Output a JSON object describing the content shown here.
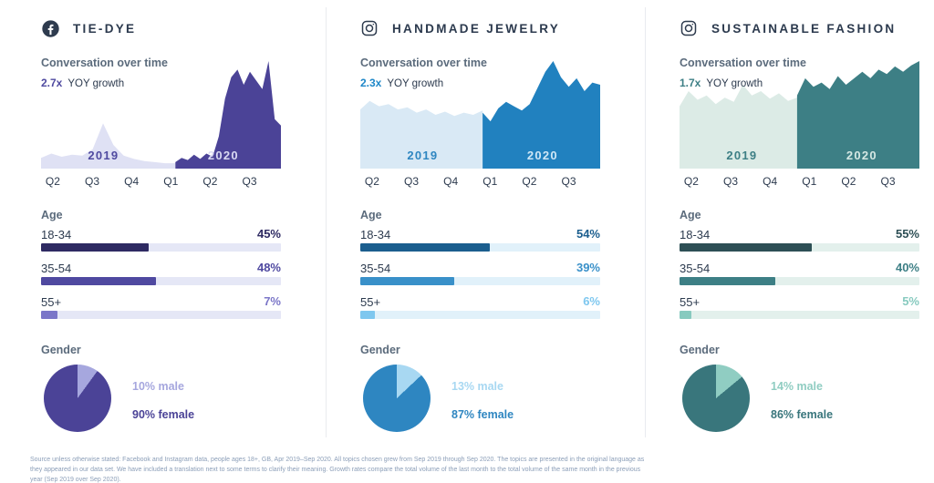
{
  "footer": {
    "text": "Source unless otherwise stated: Facebook and Instagram data, people ages 18+, GB, Apr 2019–Sep 2020. All topics chosen grew from Sep 2019 through Sep 2020. The topics are presented in the original language as they appeared in our data set. We have included a translation next to some terms to clarify their meaning. Growth rates compare the total volume of the last month to the total volume of the same month in the previous year (Sep 2019 over Sep 2020)."
  },
  "columns": [
    {
      "title": "TIE-DYE",
      "platform": "facebook",
      "icon": "facebook-icon",
      "conversation_label": "Conversation over time",
      "growth_value": "2.7x",
      "growth_label": "YOY growth",
      "age_label": "Age",
      "gender_label": "Gender",
      "age_rows": [
        {
          "label": "18-34",
          "pct": "45%"
        },
        {
          "label": "35-54",
          "pct": "48%"
        },
        {
          "label": "55+",
          "pct": "7%"
        }
      ],
      "male_label": "10% male",
      "female_label": "90% female",
      "colors": {
        "accent": "#4f4aa0",
        "area_2019": "#dfe1f4",
        "area_2020": "#4b4397",
        "year_2019_text": "#4f4aa0",
        "year_2020_text": "#d9d9f2",
        "track": "#e5e7f6",
        "male": "#a6a7de",
        "female": "#4b4397",
        "bar_colors": [
          "#2e2a62",
          "#4f49a0",
          "#7b76c8"
        ]
      }
    },
    {
      "title": "HANDMADE JEWELRY",
      "platform": "instagram",
      "icon": "instagram-icon",
      "conversation_label": "Conversation over time",
      "growth_value": "2.3x",
      "growth_label": "YOY growth",
      "age_label": "Age",
      "gender_label": "Gender",
      "age_rows": [
        {
          "label": "18-34",
          "pct": "54%"
        },
        {
          "label": "35-54",
          "pct": "39%"
        },
        {
          "label": "55+",
          "pct": "6%"
        }
      ],
      "male_label": "13% male",
      "female_label": "87% female",
      "colors": {
        "accent": "#1e87c8",
        "area_2019": "#d9e9f5",
        "area_2020": "#2181bf",
        "year_2019_text": "#2e86c1",
        "year_2020_text": "#cfe7f6",
        "track": "#e1f1fa",
        "male": "#a8d8f2",
        "female": "#2e86c1",
        "bar_colors": [
          "#1b5e8e",
          "#3990c9",
          "#7ec7ef"
        ]
      }
    },
    {
      "title": "SUSTAINABLE FASHION",
      "platform": "instagram",
      "icon": "instagram-icon",
      "conversation_label": "Conversation over time",
      "growth_value": "1.7x",
      "growth_label": "YOY growth",
      "age_label": "Age",
      "gender_label": "Gender",
      "age_rows": [
        {
          "label": "18-34",
          "pct": "55%"
        },
        {
          "label": "35-54",
          "pct": "40%"
        },
        {
          "label": "55+",
          "pct": "5%"
        }
      ],
      "male_label": "14% male",
      "female_label": "86% female",
      "colors": {
        "accent": "#3d7f85",
        "area_2019": "#dcebe6",
        "area_2020": "#3d7f85",
        "year_2019_text": "#3d7f85",
        "year_2020_text": "#d5e8e4",
        "track": "#e3f0ec",
        "male": "#90cdc2",
        "female": "#39767c",
        "bar_colors": [
          "#2d4f55",
          "#3d7f85",
          "#87cabf"
        ]
      }
    }
  ],
  "chart_data": [
    {
      "type": "area",
      "column": "TIE-DYE",
      "title": "Conversation over time",
      "yoy_growth": "2.7x",
      "x_labels": [
        "Q2",
        "Q3",
        "Q4",
        "Q1",
        "Q2",
        "Q3"
      ],
      "split": 0.56,
      "ylim": [
        0,
        100
      ],
      "series": [
        {
          "name": "2019",
          "values": [
            10,
            14,
            11,
            13,
            12,
            18,
            42,
            22,
            12,
            9,
            7,
            6,
            5,
            5
          ]
        },
        {
          "name": "2020",
          "values": [
            6,
            10,
            8,
            13,
            9,
            14,
            11,
            30,
            65,
            85,
            92,
            78,
            90,
            82,
            74,
            100,
            46,
            40
          ]
        }
      ]
    },
    {
      "type": "bar",
      "column": "TIE-DYE",
      "title": "Age",
      "categories": [
        "18-34",
        "35-54",
        "55+"
      ],
      "values": [
        45,
        48,
        7
      ],
      "unit": "%"
    },
    {
      "type": "pie",
      "column": "TIE-DYE",
      "title": "Gender",
      "labels": [
        "male",
        "female"
      ],
      "values": [
        10,
        90
      ],
      "unit": "%"
    },
    {
      "type": "area",
      "column": "HANDMADE JEWELRY",
      "title": "Conversation over time",
      "yoy_growth": "2.3x",
      "x_labels": [
        "Q2",
        "Q3",
        "Q4",
        "Q1",
        "Q2",
        "Q3"
      ],
      "split": 0.51,
      "ylim": [
        0,
        100
      ],
      "series": [
        {
          "name": "2019",
          "values": [
            55,
            63,
            58,
            60,
            55,
            57,
            52,
            55,
            50,
            53,
            49,
            52,
            50,
            54
          ]
        },
        {
          "name": "2020",
          "values": [
            52,
            44,
            56,
            62,
            58,
            54,
            60,
            75,
            90,
            100,
            85,
            76,
            84,
            72,
            80,
            78
          ]
        }
      ]
    },
    {
      "type": "bar",
      "column": "HANDMADE JEWELRY",
      "title": "Age",
      "categories": [
        "18-34",
        "35-54",
        "55+"
      ],
      "values": [
        54,
        39,
        6
      ],
      "unit": "%"
    },
    {
      "type": "pie",
      "column": "HANDMADE JEWELRY",
      "title": "Gender",
      "labels": [
        "male",
        "female"
      ],
      "values": [
        13,
        87
      ],
      "unit": "%"
    },
    {
      "type": "area",
      "column": "SUSTAINABLE FASHION",
      "title": "Conversation over time",
      "yoy_growth": "1.7x",
      "x_labels": [
        "Q2",
        "Q3",
        "Q4",
        "Q1",
        "Q2",
        "Q3"
      ],
      "split": 0.49,
      "ylim": [
        0,
        100
      ],
      "series": [
        {
          "name": "2019",
          "values": [
            58,
            72,
            64,
            68,
            60,
            66,
            62,
            78,
            68,
            72,
            65,
            70,
            63,
            66
          ]
        },
        {
          "name": "2020",
          "values": [
            68,
            84,
            76,
            80,
            74,
            86,
            78,
            84,
            90,
            84,
            92,
            88,
            95,
            90,
            96,
            100
          ]
        }
      ]
    },
    {
      "type": "bar",
      "column": "SUSTAINABLE FASHION",
      "title": "Age",
      "categories": [
        "18-34",
        "35-54",
        "55+"
      ],
      "values": [
        55,
        40,
        5
      ],
      "unit": "%"
    },
    {
      "type": "pie",
      "column": "SUSTAINABLE FASHION",
      "title": "Gender",
      "labels": [
        "male",
        "female"
      ],
      "values": [
        14,
        86
      ],
      "unit": "%"
    }
  ]
}
